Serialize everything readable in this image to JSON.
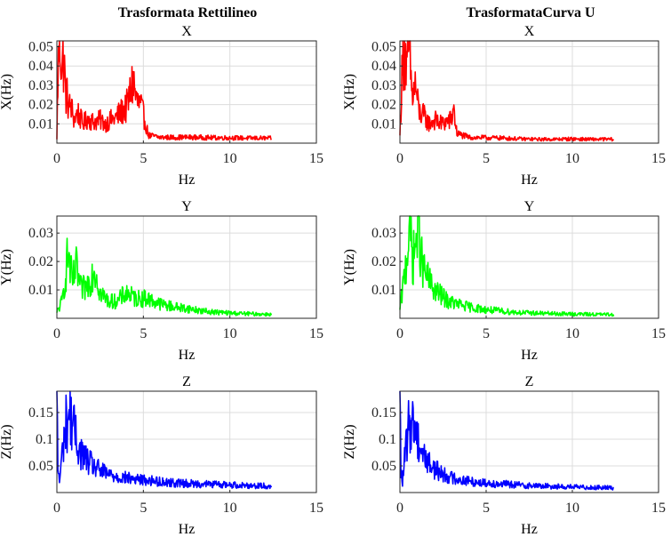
{
  "column_titles": [
    "Trasformata Rettilineo",
    "TrasformataCurva U"
  ],
  "chart_data": [
    {
      "type": "line",
      "title": "X",
      "xlabel": "Hz",
      "ylabel": "X(Hz)",
      "xlim": [
        0,
        15
      ],
      "ylim": [
        0,
        0.053
      ],
      "xticks": [
        0,
        5,
        10,
        15
      ],
      "yticks": [
        0.01,
        0.02,
        0.03,
        0.04,
        0.05
      ],
      "grid": true,
      "series": [
        {
          "color": "#ff0000",
          "x_end": 12.4,
          "points": [
            [
              0,
              0.002
            ],
            [
              0.05,
              0.03
            ],
            [
              0.12,
              0.05
            ],
            [
              0.2,
              0.052
            ],
            [
              0.3,
              0.038
            ],
            [
              0.4,
              0.045
            ],
            [
              0.5,
              0.026
            ],
            [
              0.6,
              0.024
            ],
            [
              0.7,
              0.018
            ],
            [
              0.8,
              0.02
            ],
            [
              1.0,
              0.012
            ],
            [
              1.2,
              0.016
            ],
            [
              1.5,
              0.01
            ],
            [
              1.8,
              0.013
            ],
            [
              2.1,
              0.011
            ],
            [
              2.5,
              0.012
            ],
            [
              2.8,
              0.01
            ],
            [
              3.1,
              0.012
            ],
            [
              3.4,
              0.013
            ],
            [
              3.7,
              0.016
            ],
            [
              4.0,
              0.018
            ],
            [
              4.2,
              0.024
            ],
            [
              4.4,
              0.033
            ],
            [
              4.6,
              0.022
            ],
            [
              4.9,
              0.018
            ],
            [
              5.3,
              0.004
            ],
            [
              6,
              0.003
            ],
            [
              7,
              0.003
            ],
            [
              8,
              0.003
            ],
            [
              9,
              0.0028
            ],
            [
              10,
              0.0028
            ],
            [
              11,
              0.0026
            ],
            [
              12,
              0.0026
            ],
            [
              12.4,
              0.0025
            ]
          ]
        }
      ]
    },
    {
      "type": "line",
      "title": "X",
      "xlabel": "Hz",
      "ylabel": "X(Hz)",
      "xlim": [
        0,
        15
      ],
      "ylim": [
        0,
        0.053
      ],
      "xticks": [
        0,
        5,
        10,
        15
      ],
      "yticks": [
        0.01,
        0.02,
        0.03,
        0.04,
        0.05
      ],
      "grid": true,
      "series": [
        {
          "color": "#ff0000",
          "x_end": 12.4,
          "points": [
            [
              0,
              0.004
            ],
            [
              0.1,
              0.03
            ],
            [
              0.25,
              0.052
            ],
            [
              0.4,
              0.035
            ],
            [
              0.55,
              0.05
            ],
            [
              0.7,
              0.024
            ],
            [
              0.9,
              0.03
            ],
            [
              1.1,
              0.016
            ],
            [
              1.4,
              0.014
            ],
            [
              1.7,
              0.01
            ],
            [
              2.0,
              0.012
            ],
            [
              2.4,
              0.01
            ],
            [
              2.7,
              0.011
            ],
            [
              3.0,
              0.012
            ],
            [
              3.1,
              0.019
            ],
            [
              3.3,
              0.005
            ],
            [
              4,
              0.003
            ],
            [
              5,
              0.0028
            ],
            [
              6,
              0.0026
            ],
            [
              7,
              0.0022
            ],
            [
              8,
              0.002
            ],
            [
              9,
              0.002
            ],
            [
              10,
              0.0022
            ],
            [
              11,
              0.002
            ],
            [
              12,
              0.002
            ],
            [
              12.4,
              0.002
            ]
          ]
        }
      ]
    },
    {
      "type": "line",
      "title": "Y",
      "xlabel": "Hz",
      "ylabel": "Y(Hz)",
      "xlim": [
        0,
        15
      ],
      "ylim": [
        0,
        0.036
      ],
      "xticks": [
        0,
        5,
        10,
        15
      ],
      "yticks": [
        0.01,
        0.02,
        0.03
      ],
      "grid": true,
      "series": [
        {
          "color": "#00ff00",
          "x_end": 12.4,
          "points": [
            [
              0,
              0.002
            ],
            [
              0.3,
              0.006
            ],
            [
              0.5,
              0.015
            ],
            [
              0.65,
              0.023
            ],
            [
              0.9,
              0.012
            ],
            [
              1.1,
              0.018
            ],
            [
              1.4,
              0.01
            ],
            [
              1.7,
              0.011
            ],
            [
              2.0,
              0.015
            ],
            [
              2.2,
              0.018
            ],
            [
              2.5,
              0.009
            ],
            [
              3.0,
              0.006
            ],
            [
              3.5,
              0.006
            ],
            [
              4.0,
              0.009
            ],
            [
              4.5,
              0.007
            ],
            [
              5.2,
              0.007
            ],
            [
              6.0,
              0.005
            ],
            [
              6.8,
              0.004
            ],
            [
              7.5,
              0.0035
            ],
            [
              8.5,
              0.0025
            ],
            [
              9.5,
              0.002
            ],
            [
              10.5,
              0.0017
            ],
            [
              11.5,
              0.0015
            ],
            [
              12.4,
              0.0014
            ]
          ]
        }
      ]
    },
    {
      "type": "line",
      "title": "Y",
      "xlabel": "Hz",
      "ylabel": "Y(Hz)",
      "xlim": [
        0,
        15
      ],
      "ylim": [
        0,
        0.036
      ],
      "xticks": [
        0,
        5,
        10,
        15
      ],
      "yticks": [
        0.01,
        0.02,
        0.03
      ],
      "grid": true,
      "series": [
        {
          "color": "#00ff00",
          "x_end": 12.4,
          "points": [
            [
              0,
              0.003
            ],
            [
              0.2,
              0.012
            ],
            [
              0.4,
              0.022
            ],
            [
              0.55,
              0.034
            ],
            [
              0.75,
              0.02
            ],
            [
              0.95,
              0.028
            ],
            [
              1.05,
              0.036
            ],
            [
              1.3,
              0.018
            ],
            [
              1.6,
              0.014
            ],
            [
              2.0,
              0.01
            ],
            [
              2.4,
              0.008
            ],
            [
              2.8,
              0.006
            ],
            [
              3.3,
              0.005
            ],
            [
              4.0,
              0.004
            ],
            [
              5.0,
              0.003
            ],
            [
              6.0,
              0.0025
            ],
            [
              7.0,
              0.002
            ],
            [
              8.0,
              0.0018
            ],
            [
              9.0,
              0.0016
            ],
            [
              10.0,
              0.0015
            ],
            [
              11.0,
              0.0014
            ],
            [
              12.4,
              0.0013
            ]
          ]
        }
      ]
    },
    {
      "type": "line",
      "title": "Z",
      "xlabel": "Hz",
      "ylabel": "Z(Hz)",
      "xlim": [
        0,
        15
      ],
      "ylim": [
        0,
        0.19
      ],
      "xticks": [
        0,
        5,
        10,
        15
      ],
      "yticks": [
        0.05,
        0.1,
        0.15
      ],
      "grid": true,
      "series": [
        {
          "color": "#0000ff",
          "x_end": 12.4,
          "points": [
            [
              0,
              0.19
            ],
            [
              0.05,
              0.05
            ],
            [
              0.15,
              0.02
            ],
            [
              0.3,
              0.07
            ],
            [
              0.5,
              0.125
            ],
            [
              0.7,
              0.148
            ],
            [
              0.9,
              0.135
            ],
            [
              1.1,
              0.1
            ],
            [
              1.4,
              0.075
            ],
            [
              1.8,
              0.058
            ],
            [
              2.3,
              0.045
            ],
            [
              2.8,
              0.036
            ],
            [
              3.5,
              0.03
            ],
            [
              4.5,
              0.025
            ],
            [
              5.5,
              0.022
            ],
            [
              6.5,
              0.019
            ],
            [
              7.5,
              0.017
            ],
            [
              8.5,
              0.016
            ],
            [
              9.5,
              0.015
            ],
            [
              10.5,
              0.014
            ],
            [
              11.5,
              0.013
            ],
            [
              12.4,
              0.012
            ]
          ]
        }
      ]
    },
    {
      "type": "line",
      "title": "Z",
      "xlabel": "Hz",
      "ylabel": "Z(Hz)",
      "xlim": [
        0,
        15
      ],
      "ylim": [
        0,
        0.19
      ],
      "xticks": [
        0,
        5,
        10,
        15
      ],
      "yticks": [
        0.05,
        0.1,
        0.15
      ],
      "grid": true,
      "series": [
        {
          "color": "#0000ff",
          "x_end": 12.4,
          "points": [
            [
              0,
              0.19
            ],
            [
              0.05,
              0.04
            ],
            [
              0.15,
              0.02
            ],
            [
              0.3,
              0.07
            ],
            [
              0.5,
              0.12
            ],
            [
              0.65,
              0.138
            ],
            [
              0.85,
              0.125
            ],
            [
              1.1,
              0.095
            ],
            [
              1.4,
              0.07
            ],
            [
              1.8,
              0.05
            ],
            [
              2.2,
              0.04
            ],
            [
              2.8,
              0.03
            ],
            [
              3.5,
              0.024
            ],
            [
              4.5,
              0.019
            ],
            [
              5.5,
              0.017
            ],
            [
              6.5,
              0.015
            ],
            [
              7.5,
              0.013
            ],
            [
              8.5,
              0.012
            ],
            [
              9.5,
              0.011
            ],
            [
              10.5,
              0.01
            ],
            [
              11.5,
              0.0095
            ],
            [
              12.4,
              0.009
            ]
          ]
        }
      ]
    }
  ]
}
